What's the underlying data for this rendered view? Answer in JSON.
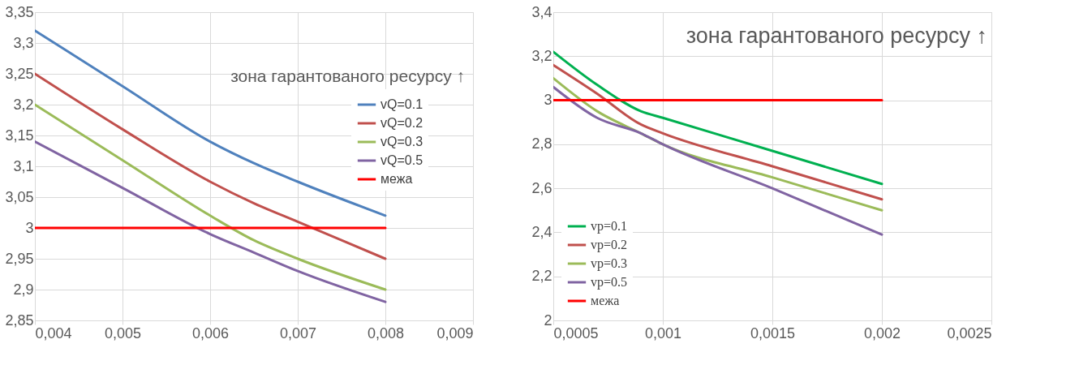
{
  "chart_data": [
    {
      "type": "line",
      "x": [
        0.004,
        0.005,
        0.006,
        0.0065,
        0.007,
        0.008
      ],
      "series": [
        {
          "name": "vQ=0.1",
          "color": "#4f81bd",
          "values": [
            3.32,
            3.23,
            3.14,
            3.105,
            3.075,
            3.02
          ]
        },
        {
          "name": "vQ=0.2",
          "color": "#c0504d",
          "values": [
            3.25,
            3.16,
            3.075,
            3.04,
            3.01,
            2.95
          ]
        },
        {
          "name": "vQ=0.3",
          "color": "#9bbb59",
          "values": [
            3.2,
            3.11,
            3.02,
            2.98,
            2.95,
            2.9
          ]
        },
        {
          "name": "vQ=0.5",
          "color": "#8064a2",
          "values": [
            3.14,
            3.065,
            2.99,
            2.96,
            2.93,
            2.88
          ]
        },
        {
          "name": "межа",
          "color": "#ff0000",
          "x": [
            0.004,
            0.008
          ],
          "values": [
            3,
            3
          ]
        }
      ],
      "xlim": [
        0.004,
        0.009
      ],
      "xticks": [
        {
          "value": 0.004,
          "label": "0,004"
        },
        {
          "value": 0.005,
          "label": "0,005"
        },
        {
          "value": 0.006,
          "label": "0,006"
        },
        {
          "value": 0.007,
          "label": "0,007"
        },
        {
          "value": 0.008,
          "label": "0,008"
        },
        {
          "value": 0.009,
          "label": "0,009"
        }
      ],
      "ylim": [
        2.85,
        3.35
      ],
      "yticks": [
        {
          "value": 2.85,
          "label": "2,85"
        },
        {
          "value": 2.9,
          "label": "2,9"
        },
        {
          "value": 2.95,
          "label": "2,95"
        },
        3,
        {
          "value": 3.05,
          "label": "3,05"
        },
        {
          "value": 3.1,
          "label": "3,1"
        },
        {
          "value": 3.15,
          "label": "3,15"
        },
        {
          "value": 3.2,
          "label": "3,2"
        },
        {
          "value": 3.25,
          "label": "3,25"
        },
        {
          "value": 3.3,
          "label": "3,3"
        },
        {
          "value": 3.35,
          "label": "3,35"
        }
      ],
      "annotations": [
        "зона гарантованого ресурсу ↑"
      ],
      "grid": true,
      "legend": "right",
      "marker": "none",
      "line_style": "solid"
    },
    {
      "type": "line",
      "x": [
        0.0005,
        0.0007,
        0.0009,
        0.001,
        0.0015,
        0.002
      ],
      "series": [
        {
          "name": "vp=0.1",
          "color": "#00b050",
          "values": [
            3.22,
            3.07,
            2.95,
            2.92,
            2.77,
            2.62
          ]
        },
        {
          "name": "vp=0.2",
          "color": "#c0504d",
          "values": [
            3.16,
            3.03,
            2.89,
            2.85,
            2.7,
            2.55
          ]
        },
        {
          "name": "vp=0.3",
          "color": "#9bbb59",
          "values": [
            3.1,
            2.95,
            2.85,
            2.8,
            2.65,
            2.5
          ]
        },
        {
          "name": "vp=0.5",
          "color": "#8064a2",
          "values": [
            3.06,
            2.92,
            2.85,
            2.8,
            2.6,
            2.39
          ]
        },
        {
          "name": "межа",
          "color": "#ff0000",
          "x": [
            0.0005,
            0.002
          ],
          "values": [
            3,
            3
          ]
        }
      ],
      "xlim": [
        0.0005,
        0.0025
      ],
      "xticks": [
        {
          "value": 0.0005,
          "label": "0,0005"
        },
        {
          "value": 0.001,
          "label": "0,001"
        },
        {
          "value": 0.0015,
          "label": "0,0015"
        },
        {
          "value": 0.002,
          "label": "0,002"
        },
        {
          "value": 0.0025,
          "label": "0,0025"
        }
      ],
      "ylim": [
        2,
        3.4
      ],
      "yticks": [
        2,
        {
          "value": 2.2,
          "label": "2,2"
        },
        {
          "value": 2.4,
          "label": "2,4"
        },
        {
          "value": 2.6,
          "label": "2,6"
        },
        {
          "value": 2.8,
          "label": "2,8"
        },
        3,
        {
          "value": 3.2,
          "label": "3,2"
        },
        {
          "value": 3.4,
          "label": "3,4"
        }
      ],
      "annotations": [
        "зона гарантованого ресурсу ↑"
      ],
      "grid": true,
      "legend": "bottom left",
      "marker": "none",
      "line_style": "solid"
    }
  ]
}
